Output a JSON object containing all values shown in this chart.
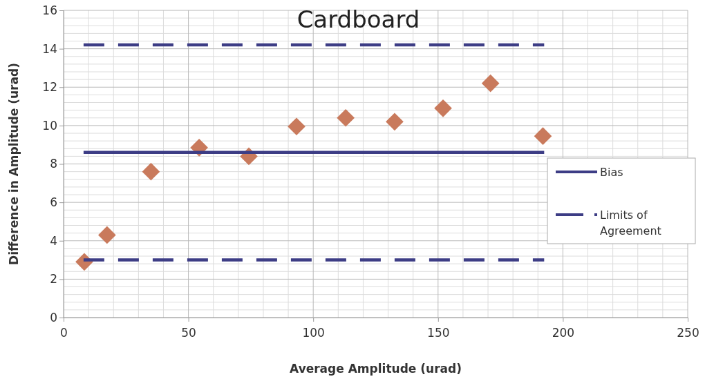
{
  "chart_data": {
    "type": "scatter",
    "title": "Cardboard",
    "xlabel": "Average Amplitude (urad)",
    "ylabel": "Difference in Amplitude (urad)",
    "xlim": [
      0,
      250
    ],
    "xticks": [
      0,
      50,
      100,
      150,
      200,
      250
    ],
    "ylim": [
      0,
      16
    ],
    "yticks": [
      0,
      2,
      4,
      6,
      8,
      10,
      12,
      14,
      16
    ],
    "grid": true,
    "legend": "right",
    "series": [
      {
        "marker": "diamond",
        "color": "#c97a5c",
        "x": [
          8.3,
          17.4,
          35,
          54.3,
          74.2,
          93.3,
          113,
          132.6,
          152,
          171,
          192
        ],
        "values": [
          2.9,
          4.3,
          7.6,
          8.85,
          8.4,
          9.95,
          10.4,
          10.2,
          10.9,
          12.2,
          9.45
        ]
      },
      {
        "type": "line",
        "name": "Bias",
        "color": "#3d3d85",
        "line_style": "solid",
        "marker": "none",
        "x": [
          8,
          192.5
        ],
        "values": [
          8.6,
          8.6
        ]
      },
      {
        "type": "line",
        "name": "Limits of Agreement",
        "color": "#3d3d85",
        "line_style": "dashed",
        "marker": "none",
        "x": [
          8,
          192.5
        ],
        "values": [
          14.2,
          14.2
        ]
      },
      {
        "type": "line",
        "color": "#3d3d85",
        "line_style": "dashed",
        "marker": "none",
        "x": [
          8,
          192.5
        ],
        "values": [
          3.0,
          3.0
        ]
      }
    ]
  }
}
